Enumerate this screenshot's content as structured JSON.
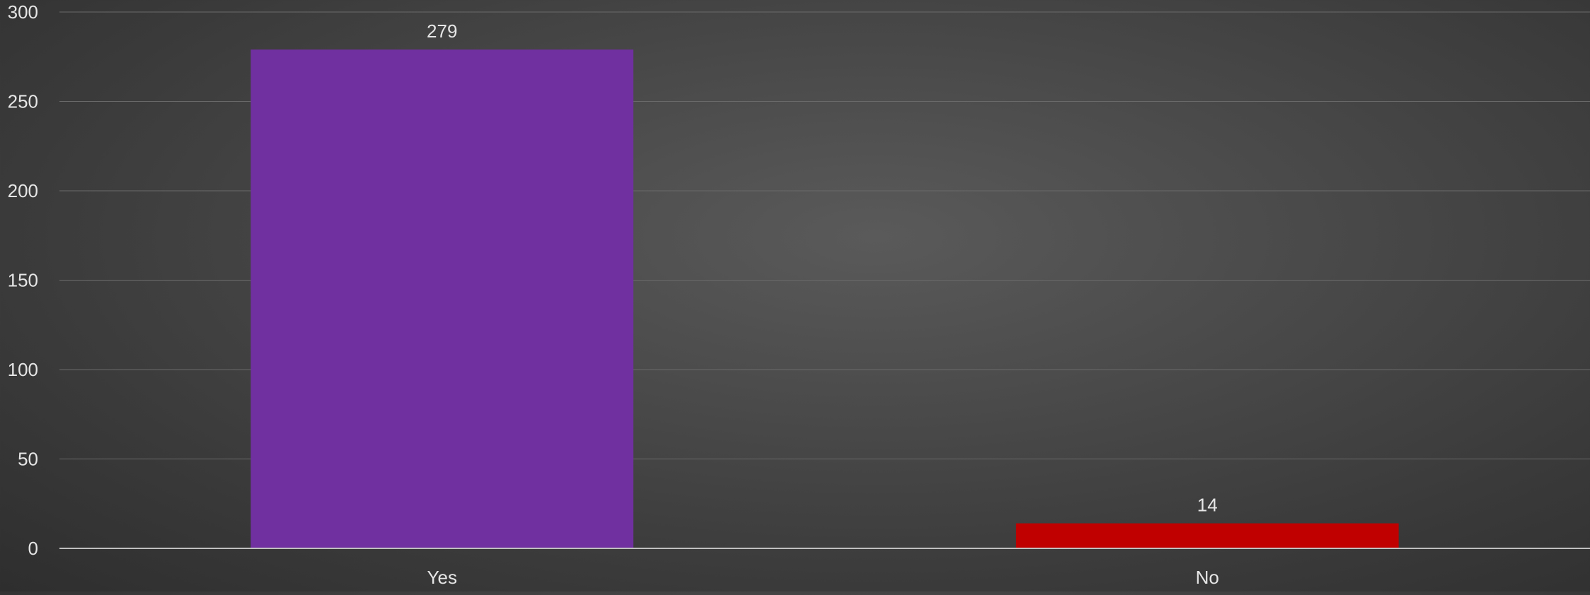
{
  "chart_data": {
    "type": "bar",
    "title": "",
    "xlabel": "",
    "ylabel": "",
    "categories": [
      "Yes",
      "No"
    ],
    "values": [
      279,
      14
    ],
    "data_labels": [
      "279",
      "14"
    ],
    "bar_colors": [
      "#7030a0",
      "#c00000"
    ],
    "ylim": [
      0,
      300
    ],
    "yticks": [
      0,
      50,
      100,
      150,
      200,
      250,
      300
    ],
    "ytick_labels": [
      "0",
      "50",
      "100",
      "150",
      "200",
      "250",
      "300"
    ],
    "grid": true,
    "legend": "none"
  },
  "theme": {
    "gridline_color": "#6a6a6a",
    "axis_color": "#bfbfbf",
    "text_color": "#e6e6e6"
  }
}
